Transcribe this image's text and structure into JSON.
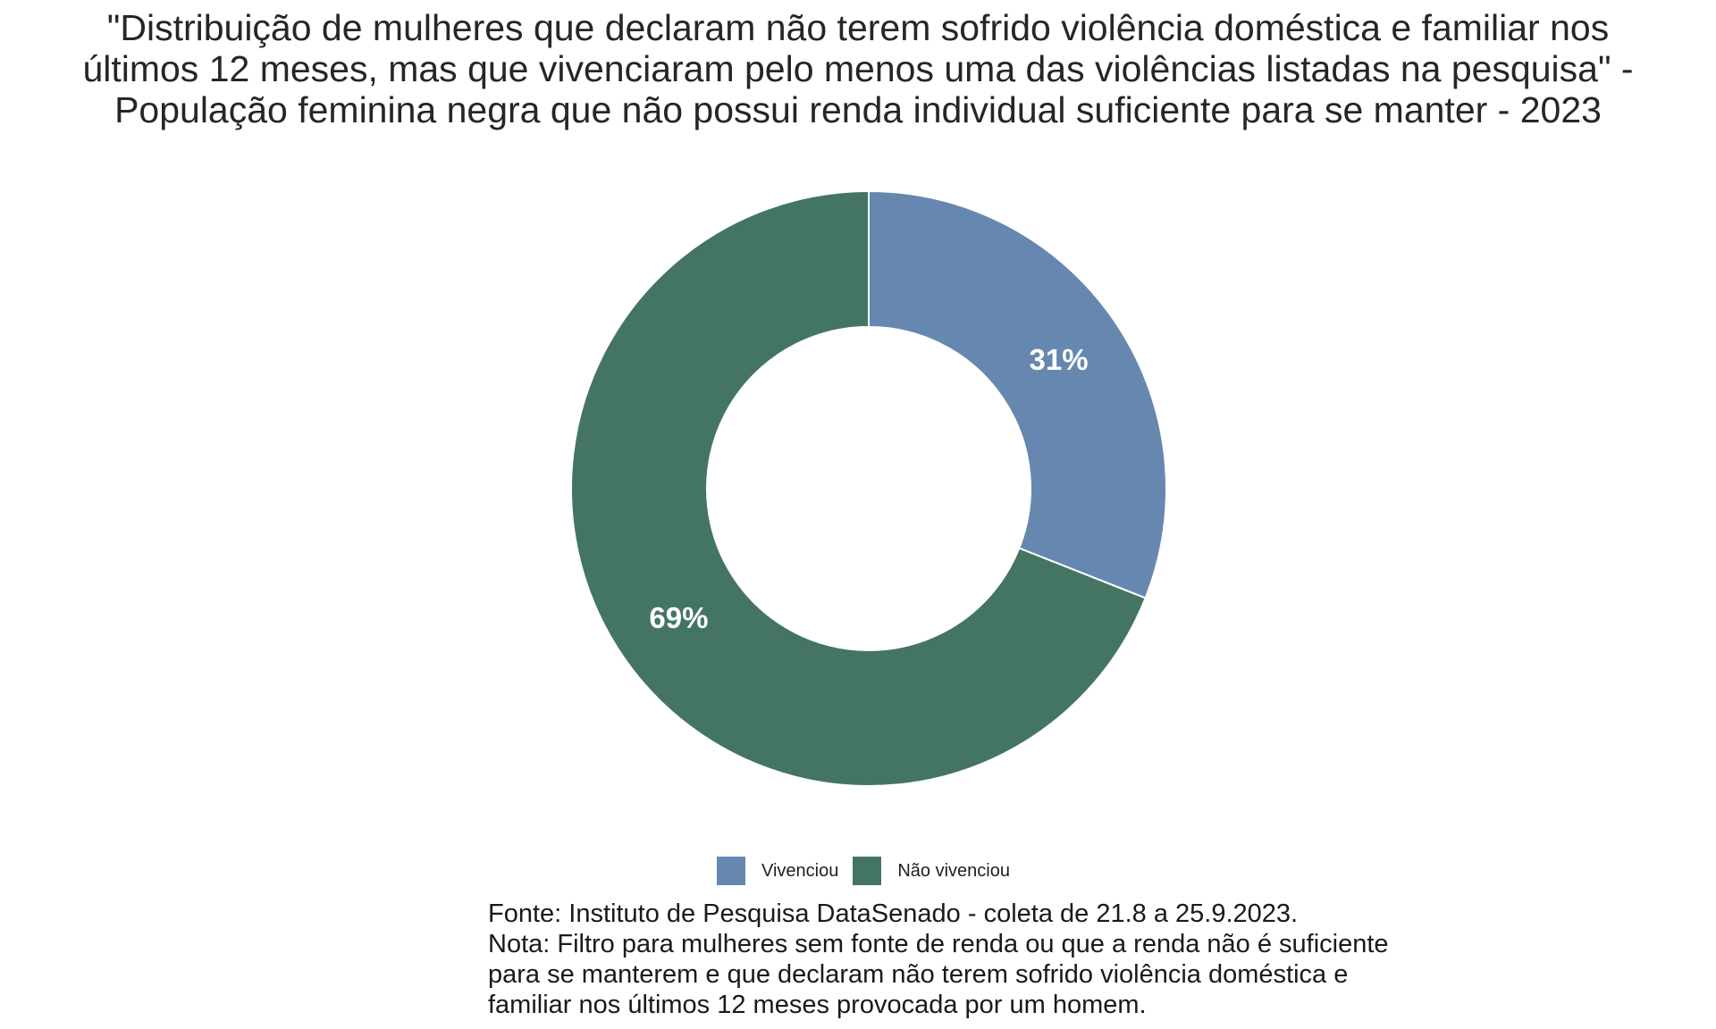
{
  "chart_data": {
    "type": "pie",
    "variant": "donut",
    "title_lines": [
      "\"Distribuição de mulheres que declaram não terem sofrido violência doméstica e familiar nos",
      "últimos 12 meses, mas que vivenciaram pelo menos uma das violências listadas na pesquisa\" -",
      "População feminina negra que não possui renda individual suficiente para se manter - 2023"
    ],
    "slices": [
      {
        "label": "Vivenciou",
        "value": 31,
        "display": "31%",
        "color": "#6688b0"
      },
      {
        "label": "Não vivenciou",
        "value": 69,
        "display": "69%",
        "color": "#447563"
      }
    ],
    "legend_position": "bottom",
    "caption_lines": [
      "Fonte: Instituto de Pesquisa DataSenado - coleta de 21.8 a 25.9.2023.",
      "Nota: Filtro para mulheres sem fonte de renda ou que a renda não é suficiente",
      "para se manterem e que declaram não terem sofrido violência doméstica e",
      "familiar nos últimos 12 meses provocada por um homem."
    ]
  }
}
